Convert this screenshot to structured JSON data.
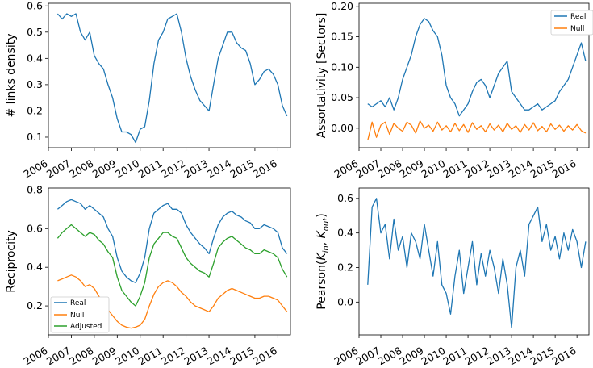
{
  "chart_data": [
    {
      "type": "line",
      "title": "",
      "xlabel": "",
      "ylabel": "# links density",
      "x_range": [
        2006.0,
        2016.55
      ],
      "ylim": [
        0.06,
        0.61
      ],
      "yticks": [
        0.1,
        0.2,
        0.3,
        0.4,
        0.5,
        0.6
      ],
      "ytick_labels": [
        "0.1",
        "0.2",
        "0.3",
        "0.4",
        "0.5",
        "0.6"
      ],
      "xticks": [
        2006,
        2007,
        2008,
        2009,
        2010,
        2011,
        2012,
        2013,
        2014,
        2015,
        2016
      ],
      "xtick_labels": [
        "2006",
        "2007",
        "2008",
        "2009",
        "2010",
        "2011",
        "2012",
        "2013",
        "2014",
        "2015",
        "2016"
      ],
      "legend": null,
      "series": [
        {
          "color": "#1f77b4",
          "x": [
            2006.4,
            2006.6,
            2006.8,
            2007.0,
            2007.2,
            2007.4,
            2007.6,
            2007.8,
            2008.0,
            2008.2,
            2008.4,
            2008.6,
            2008.8,
            2009.0,
            2009.2,
            2009.4,
            2009.6,
            2009.8,
            2010.0,
            2010.2,
            2010.4,
            2010.6,
            2010.8,
            2011.0,
            2011.2,
            2011.4,
            2011.6,
            2011.8,
            2012.0,
            2012.2,
            2012.4,
            2012.6,
            2012.8,
            2013.0,
            2013.2,
            2013.4,
            2013.6,
            2013.8,
            2014.0,
            2014.2,
            2014.4,
            2014.6,
            2014.8,
            2015.0,
            2015.2,
            2015.4,
            2015.6,
            2015.8,
            2016.0,
            2016.2,
            2016.4
          ],
          "y": [
            0.57,
            0.55,
            0.57,
            0.56,
            0.57,
            0.5,
            0.47,
            0.5,
            0.41,
            0.38,
            0.36,
            0.3,
            0.25,
            0.17,
            0.12,
            0.12,
            0.11,
            0.08,
            0.13,
            0.14,
            0.24,
            0.38,
            0.47,
            0.5,
            0.55,
            0.56,
            0.57,
            0.5,
            0.4,
            0.33,
            0.28,
            0.24,
            0.22,
            0.2,
            0.3,
            0.4,
            0.45,
            0.5,
            0.5,
            0.46,
            0.44,
            0.43,
            0.38,
            0.3,
            0.32,
            0.35,
            0.36,
            0.34,
            0.3,
            0.22,
            0.18
          ]
        }
      ]
    },
    {
      "type": "line",
      "title": "",
      "xlabel": "",
      "ylabel": "Assortativity [Sectors]",
      "x_range": [
        2006.0,
        2016.55
      ],
      "ylim": [
        -0.032,
        0.205
      ],
      "yticks": [
        0.0,
        0.05,
        0.1,
        0.15,
        0.2
      ],
      "ytick_labels": [
        "0.00",
        "0.05",
        "0.10",
        "0.15",
        "0.20"
      ],
      "xticks": [
        2006,
        2007,
        2008,
        2009,
        2010,
        2011,
        2012,
        2013,
        2014,
        2015,
        2016
      ],
      "xtick_labels": [
        "2006",
        "2007",
        "2008",
        "2009",
        "2010",
        "2011",
        "2012",
        "2013",
        "2014",
        "2015",
        "2016"
      ],
      "legend": "top-right",
      "series": [
        {
          "name": "Real",
          "color": "#1f77b4",
          "x": [
            2006.4,
            2006.6,
            2006.8,
            2007.0,
            2007.2,
            2007.4,
            2007.6,
            2007.8,
            2008.0,
            2008.2,
            2008.4,
            2008.6,
            2008.8,
            2009.0,
            2009.2,
            2009.4,
            2009.6,
            2009.8,
            2010.0,
            2010.2,
            2010.4,
            2010.6,
            2010.8,
            2011.0,
            2011.2,
            2011.4,
            2011.6,
            2011.8,
            2012.0,
            2012.2,
            2012.4,
            2012.6,
            2012.8,
            2013.0,
            2013.2,
            2013.4,
            2013.6,
            2013.8,
            2014.0,
            2014.2,
            2014.4,
            2014.6,
            2014.8,
            2015.0,
            2015.2,
            2015.4,
            2015.6,
            2015.8,
            2016.0,
            2016.2,
            2016.4
          ],
          "y": [
            0.04,
            0.035,
            0.04,
            0.045,
            0.035,
            0.05,
            0.03,
            0.05,
            0.08,
            0.1,
            0.12,
            0.15,
            0.17,
            0.18,
            0.175,
            0.16,
            0.15,
            0.12,
            0.07,
            0.05,
            0.04,
            0.02,
            0.03,
            0.04,
            0.06,
            0.075,
            0.08,
            0.07,
            0.05,
            0.07,
            0.09,
            0.1,
            0.11,
            0.06,
            0.05,
            0.04,
            0.03,
            0.03,
            0.035,
            0.04,
            0.03,
            0.035,
            0.04,
            0.045,
            0.06,
            0.07,
            0.08,
            0.1,
            0.12,
            0.14,
            0.11
          ]
        },
        {
          "name": "Null",
          "color": "#ff7f0e",
          "x": [
            2006.4,
            2006.6,
            2006.8,
            2007.0,
            2007.2,
            2007.4,
            2007.6,
            2007.8,
            2008.0,
            2008.2,
            2008.4,
            2008.6,
            2008.8,
            2009.0,
            2009.2,
            2009.4,
            2009.6,
            2009.8,
            2010.0,
            2010.2,
            2010.4,
            2010.6,
            2010.8,
            2011.0,
            2011.2,
            2011.4,
            2011.6,
            2011.8,
            2012.0,
            2012.2,
            2012.4,
            2012.6,
            2012.8,
            2013.0,
            2013.2,
            2013.4,
            2013.6,
            2013.8,
            2014.0,
            2014.2,
            2014.4,
            2014.6,
            2014.8,
            2015.0,
            2015.2,
            2015.4,
            2015.6,
            2015.8,
            2016.0,
            2016.2,
            2016.4
          ],
          "y": [
            -0.02,
            0.01,
            -0.015,
            0.005,
            0.01,
            -0.01,
            0.008,
            0.0,
            -0.005,
            0.01,
            0.005,
            -0.008,
            0.012,
            0.0,
            0.005,
            -0.005,
            0.01,
            -0.003,
            0.004,
            -0.006,
            0.008,
            -0.004,
            0.006,
            -0.007,
            0.009,
            -0.002,
            0.004,
            -0.006,
            0.007,
            -0.003,
            0.005,
            -0.006,
            0.008,
            -0.002,
            0.004,
            -0.007,
            0.006,
            -0.003,
            0.009,
            -0.004,
            0.003,
            -0.006,
            0.007,
            -0.002,
            0.005,
            -0.005,
            0.004,
            -0.003,
            0.006,
            -0.004,
            -0.008
          ]
        }
      ]
    },
    {
      "type": "line",
      "title": "",
      "xlabel": "",
      "ylabel": "Reciprocity",
      "x_range": [
        2006.0,
        2016.55
      ],
      "ylim": [
        0.05,
        0.81
      ],
      "yticks": [
        0.2,
        0.4,
        0.6,
        0.8
      ],
      "ytick_labels": [
        "0.2",
        "0.4",
        "0.6",
        "0.8"
      ],
      "xticks": [
        2006,
        2007,
        2008,
        2009,
        2010,
        2011,
        2012,
        2013,
        2014,
        2015,
        2016
      ],
      "xtick_labels": [
        "2006",
        "2007",
        "2008",
        "2009",
        "2010",
        "2011",
        "2012",
        "2013",
        "2014",
        "2015",
        "2016"
      ],
      "legend": "bottom-left",
      "series": [
        {
          "name": "Real",
          "color": "#1f77b4",
          "x": [
            2006.4,
            2006.6,
            2006.8,
            2007.0,
            2007.2,
            2007.4,
            2007.6,
            2007.8,
            2008.0,
            2008.2,
            2008.4,
            2008.6,
            2008.8,
            2009.0,
            2009.2,
            2009.4,
            2009.6,
            2009.8,
            2010.0,
            2010.2,
            2010.4,
            2010.6,
            2010.8,
            2011.0,
            2011.2,
            2011.4,
            2011.6,
            2011.8,
            2012.0,
            2012.2,
            2012.4,
            2012.6,
            2012.8,
            2013.0,
            2013.2,
            2013.4,
            2013.6,
            2013.8,
            2014.0,
            2014.2,
            2014.4,
            2014.6,
            2014.8,
            2015.0,
            2015.2,
            2015.4,
            2015.6,
            2015.8,
            2016.0,
            2016.2,
            2016.4
          ],
          "y": [
            0.7,
            0.72,
            0.74,
            0.75,
            0.74,
            0.73,
            0.7,
            0.72,
            0.7,
            0.68,
            0.66,
            0.6,
            0.56,
            0.45,
            0.38,
            0.35,
            0.33,
            0.32,
            0.37,
            0.45,
            0.6,
            0.68,
            0.7,
            0.72,
            0.73,
            0.7,
            0.7,
            0.68,
            0.62,
            0.58,
            0.55,
            0.52,
            0.5,
            0.47,
            0.55,
            0.62,
            0.66,
            0.68,
            0.69,
            0.67,
            0.66,
            0.64,
            0.63,
            0.6,
            0.6,
            0.62,
            0.61,
            0.6,
            0.58,
            0.5,
            0.47
          ]
        },
        {
          "name": "Null",
          "color": "#ff7f0e",
          "x": [
            2006.4,
            2006.6,
            2006.8,
            2007.0,
            2007.2,
            2007.4,
            2007.6,
            2007.8,
            2008.0,
            2008.2,
            2008.4,
            2008.6,
            2008.8,
            2009.0,
            2009.2,
            2009.4,
            2009.6,
            2009.8,
            2010.0,
            2010.2,
            2010.4,
            2010.6,
            2010.8,
            2011.0,
            2011.2,
            2011.4,
            2011.6,
            2011.8,
            2012.0,
            2012.2,
            2012.4,
            2012.6,
            2012.8,
            2013.0,
            2013.2,
            2013.4,
            2013.6,
            2013.8,
            2014.0,
            2014.2,
            2014.4,
            2014.6,
            2014.8,
            2015.0,
            2015.2,
            2015.4,
            2015.6,
            2015.8,
            2016.0,
            2016.2,
            2016.4
          ],
          "y": [
            0.33,
            0.34,
            0.35,
            0.36,
            0.35,
            0.33,
            0.3,
            0.31,
            0.29,
            0.25,
            0.22,
            0.18,
            0.15,
            0.12,
            0.1,
            0.09,
            0.085,
            0.09,
            0.1,
            0.13,
            0.2,
            0.26,
            0.3,
            0.32,
            0.33,
            0.32,
            0.3,
            0.27,
            0.25,
            0.22,
            0.2,
            0.19,
            0.18,
            0.17,
            0.2,
            0.24,
            0.26,
            0.28,
            0.29,
            0.28,
            0.27,
            0.26,
            0.25,
            0.24,
            0.24,
            0.25,
            0.25,
            0.24,
            0.23,
            0.2,
            0.17
          ]
        },
        {
          "name": "Adjusted",
          "color": "#2ca02c",
          "x": [
            2006.4,
            2006.6,
            2006.8,
            2007.0,
            2007.2,
            2007.4,
            2007.6,
            2007.8,
            2008.0,
            2008.2,
            2008.4,
            2008.6,
            2008.8,
            2009.0,
            2009.2,
            2009.4,
            2009.6,
            2009.8,
            2010.0,
            2010.2,
            2010.4,
            2010.6,
            2010.8,
            2011.0,
            2011.2,
            2011.4,
            2011.6,
            2011.8,
            2012.0,
            2012.2,
            2012.4,
            2012.6,
            2012.8,
            2013.0,
            2013.2,
            2013.4,
            2013.6,
            2013.8,
            2014.0,
            2014.2,
            2014.4,
            2014.6,
            2014.8,
            2015.0,
            2015.2,
            2015.4,
            2015.6,
            2015.8,
            2016.0,
            2016.2,
            2016.4
          ],
          "y": [
            0.55,
            0.58,
            0.6,
            0.62,
            0.6,
            0.58,
            0.56,
            0.58,
            0.57,
            0.54,
            0.52,
            0.48,
            0.45,
            0.35,
            0.28,
            0.25,
            0.22,
            0.2,
            0.25,
            0.32,
            0.45,
            0.52,
            0.55,
            0.58,
            0.58,
            0.56,
            0.55,
            0.5,
            0.45,
            0.42,
            0.4,
            0.38,
            0.37,
            0.35,
            0.42,
            0.5,
            0.53,
            0.55,
            0.56,
            0.54,
            0.52,
            0.5,
            0.49,
            0.47,
            0.47,
            0.49,
            0.48,
            0.47,
            0.45,
            0.39,
            0.35
          ]
        }
      ]
    },
    {
      "type": "line",
      "title": "",
      "xlabel": "",
      "ylabel": "Pearson(K_in, K_out)",
      "ylabel_parts": {
        "pre": "Pearson(",
        "k1": "K",
        "sub1": "in",
        "mid": ", ",
        "k2": "K",
        "sub2": "out",
        "post": ")"
      },
      "x_range": [
        2006.0,
        2016.55
      ],
      "ylim": [
        -0.19,
        0.66
      ],
      "yticks": [
        0.0,
        0.2,
        0.4,
        0.6
      ],
      "ytick_labels": [
        "0.0",
        "0.2",
        "0.4",
        "0.6"
      ],
      "xticks": [
        2006,
        2007,
        2008,
        2009,
        2010,
        2011,
        2012,
        2013,
        2014,
        2015,
        2016
      ],
      "xtick_labels": [
        "2006",
        "2007",
        "2008",
        "2009",
        "2010",
        "2011",
        "2012",
        "2013",
        "2014",
        "2015",
        "2016"
      ],
      "legend": null,
      "series": [
        {
          "color": "#1f77b4",
          "x": [
            2006.4,
            2006.6,
            2006.8,
            2007.0,
            2007.2,
            2007.4,
            2007.6,
            2007.8,
            2008.0,
            2008.2,
            2008.4,
            2008.6,
            2008.8,
            2009.0,
            2009.2,
            2009.4,
            2009.6,
            2009.8,
            2010.0,
            2010.2,
            2010.4,
            2010.6,
            2010.8,
            2011.0,
            2011.2,
            2011.4,
            2011.6,
            2011.8,
            2012.0,
            2012.2,
            2012.4,
            2012.6,
            2012.8,
            2013.0,
            2013.2,
            2013.4,
            2013.6,
            2013.8,
            2014.0,
            2014.2,
            2014.4,
            2014.6,
            2014.8,
            2015.0,
            2015.2,
            2015.4,
            2015.6,
            2015.8,
            2016.0,
            2016.2,
            2016.4
          ],
          "y": [
            0.1,
            0.55,
            0.6,
            0.4,
            0.45,
            0.25,
            0.48,
            0.3,
            0.38,
            0.2,
            0.4,
            0.35,
            0.25,
            0.45,
            0.3,
            0.15,
            0.35,
            0.1,
            0.05,
            -0.07,
            0.15,
            0.3,
            0.05,
            0.2,
            0.35,
            0.1,
            0.28,
            0.15,
            0.3,
            0.2,
            0.05,
            0.25,
            0.1,
            -0.15,
            0.2,
            0.3,
            0.15,
            0.45,
            0.5,
            0.55,
            0.35,
            0.45,
            0.3,
            0.38,
            0.25,
            0.4,
            0.3,
            0.42,
            0.35,
            0.2,
            0.35
          ]
        }
      ]
    }
  ]
}
